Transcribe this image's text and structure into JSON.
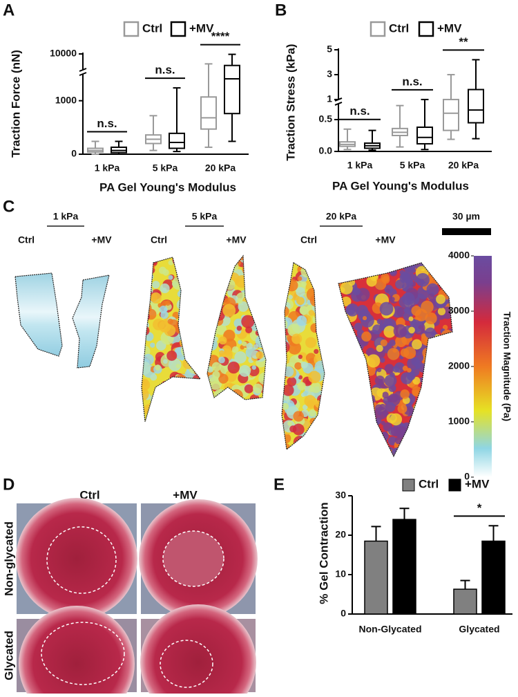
{
  "panels": [
    "A",
    "B",
    "C",
    "D",
    "E"
  ],
  "chart_data": [
    {
      "type": "box",
      "ylabel": "Traction Force (nN)",
      "xlabel": "PA Gel Young's Modulus",
      "categories": [
        "1 kPa",
        "5 kPa",
        "20 kPa"
      ],
      "series": [
        {
          "name": "Ctrl",
          "color": "#999999",
          "values": [
            {
              "min": 0,
              "q1": 40,
              "median": 70,
              "q3": 110,
              "max": 240
            },
            {
              "min": 70,
              "q1": 200,
              "median": 280,
              "q3": 360,
              "max": 720
            },
            {
              "min": 130,
              "q1": 470,
              "median": 680,
              "q3": 1070,
              "max": 5000
            }
          ]
        },
        {
          "name": "+MV",
          "color": "#000000",
          "values": [
            {
              "min": 0,
              "q1": 30,
              "median": 70,
              "q3": 130,
              "max": 240
            },
            {
              "min": 50,
              "q1": 110,
              "median": 220,
              "q3": 390,
              "max": 1240
            },
            {
              "min": 240,
              "q1": 760,
              "median": 1410,
              "q3": 4200,
              "max": 9800
            }
          ]
        }
      ],
      "ylim": [
        0,
        10000
      ],
      "y_break": [
        1500,
        2000
      ],
      "yticks": [
        0,
        1000,
        10000
      ],
      "significance": [
        "n.s.",
        "n.s.",
        "****"
      ]
    },
    {
      "type": "box",
      "ylabel": "Traction Stress (kPa)",
      "xlabel": "PA Gel Young's Modulus",
      "categories": [
        "1 kPa",
        "5 kPa",
        "20 kPa"
      ],
      "series": [
        {
          "name": "Ctrl",
          "color": "#999999",
          "values": [
            {
              "min": 0.03,
              "q1": 0.08,
              "median": 0.11,
              "q3": 0.15,
              "max": 0.35
            },
            {
              "min": 0.07,
              "q1": 0.25,
              "median": 0.3,
              "q3": 0.36,
              "max": 0.72
            },
            {
              "min": 0.19,
              "q1": 0.33,
              "median": 0.6,
              "q3": 1.0,
              "max": 3.0
            }
          ]
        },
        {
          "name": "+MV",
          "color": "#000000",
          "values": [
            {
              "min": 0.02,
              "q1": 0.05,
              "median": 0.09,
              "q3": 0.13,
              "max": 0.33
            },
            {
              "min": 0.03,
              "q1": 0.12,
              "median": 0.22,
              "q3": 0.38,
              "max": 1.0
            },
            {
              "min": 0.2,
              "q1": 0.45,
              "median": 0.65,
              "q3": 1.8,
              "max": 4.2
            }
          ]
        }
      ],
      "ylim": [
        0,
        5
      ],
      "y_break": [
        0.75,
        1
      ],
      "yticks": [
        {
          "value": 0,
          "label": "0.0"
        },
        0.5,
        1,
        3,
        5
      ],
      "significance": [
        "n.s.",
        "n.s.",
        "**"
      ]
    },
    {
      "type": "bar",
      "ylabel": "% Gel Contraction",
      "categories": [
        "Non-Glycated",
        "Glycated"
      ],
      "series": [
        {
          "name": "Ctrl",
          "color": "#808080",
          "values": [
            18.5,
            6.3
          ],
          "errors": [
            3.7,
            2.2
          ]
        },
        {
          "name": "+MV",
          "color": "#000000",
          "values": [
            24,
            18.5
          ],
          "errors": [
            2.8,
            3.9
          ]
        }
      ],
      "ylim": [
        0,
        30
      ],
      "yticks": [
        0,
        10,
        20,
        30
      ],
      "significance": [
        null,
        "*"
      ]
    }
  ],
  "traction_maps": {
    "groups": [
      {
        "label": "1 kPa",
        "conditions": [
          "Ctrl",
          "+MV"
        ]
      },
      {
        "label": "5 kPa",
        "conditions": [
          "Ctrl",
          "+MV"
        ]
      },
      {
        "label": "20 kPa",
        "conditions": [
          "Ctrl",
          "+MV"
        ]
      }
    ],
    "scale_bar": "30 µm",
    "colorbar": {
      "label": "Traction Magnitude (Pa)",
      "lim": [
        0,
        4000
      ],
      "ticks": [
        0,
        1000,
        2000,
        3000,
        4000
      ]
    }
  },
  "gel_photos": {
    "columns": [
      "Ctrl",
      "+MV"
    ],
    "rows": [
      "Non-glycated",
      "Glycated"
    ]
  }
}
